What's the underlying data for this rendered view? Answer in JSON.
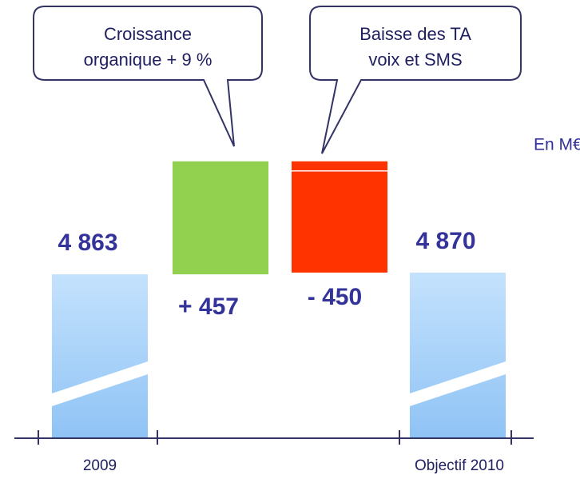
{
  "chart_data": {
    "type": "waterfall",
    "categories": [
      "2009",
      null,
      null,
      "Objectif 2010"
    ],
    "values": [
      4863,
      457,
      -450,
      4870
    ],
    "value_labels": [
      "4 863",
      "+ 457",
      "- 450",
      "4 870"
    ],
    "totals": [
      true,
      false,
      false,
      true
    ],
    "colors": [
      "#a8d2fb",
      "#92d050",
      "#ff3300",
      "#a8d2fb"
    ],
    "ylim": [
      4200,
      5400
    ],
    "axis_break": true,
    "unit": "En M€",
    "annotations": [
      {
        "lines": [
          "Croissance",
          "organique + 9 %"
        ]
      },
      {
        "lines": [
          "Baisse des TA",
          "voix et SMS"
        ]
      }
    ]
  }
}
